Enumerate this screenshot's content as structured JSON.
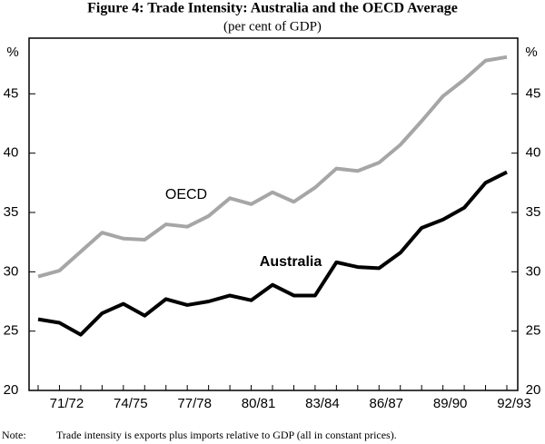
{
  "chart_data": {
    "type": "line",
    "title": "Figure 4: Trade Intensity: Australia and the OECD Average",
    "subtitle": "(per cent of GDP)",
    "y_unit": "%",
    "categories": [
      null,
      "71/72",
      null,
      null,
      "74/75",
      null,
      null,
      "77/78",
      null,
      null,
      "80/81",
      null,
      null,
      "83/84",
      null,
      null,
      "86/87",
      null,
      null,
      "89/90",
      null,
      null,
      "92/93"
    ],
    "series": [
      {
        "name": "OECD",
        "color": "#a6a6a6",
        "values": [
          29.6,
          30.1,
          31.7,
          33.3,
          32.8,
          32.7,
          34.0,
          33.8,
          34.7,
          36.2,
          35.7,
          36.7,
          35.9,
          37.1,
          38.7,
          38.5,
          39.2,
          40.7,
          42.7,
          44.8,
          46.2,
          47.8,
          48.1
        ]
      },
      {
        "name": "Australia",
        "color": "#000000",
        "values": [
          26.0,
          25.7,
          24.7,
          26.5,
          27.3,
          26.3,
          27.7,
          27.2,
          27.5,
          28.0,
          27.6,
          28.9,
          28.0,
          28.0,
          30.8,
          30.4,
          30.3,
          31.6,
          33.7,
          34.4,
          35.4,
          37.5,
          38.4
        ]
      }
    ],
    "ylim": [
      20,
      50
    ],
    "yticks": [
      20,
      25,
      30,
      35,
      40,
      45
    ],
    "grid": false,
    "note_label": "Note:",
    "note": "Trade intensity is exports plus imports relative to GDP (all in constant prices)."
  }
}
